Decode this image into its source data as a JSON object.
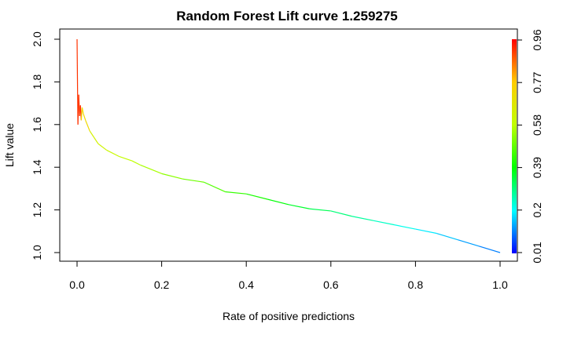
{
  "chart_data": {
    "type": "line",
    "title": "Random Forest Lift curve 1.259275",
    "xlabel": "Rate of positive predictions",
    "ylabel": "Lift value",
    "xlim": [
      0,
      1
    ],
    "ylim": [
      1.0,
      2.0
    ],
    "x_ticks": [
      "0.0",
      "0.2",
      "0.4",
      "0.6",
      "0.8",
      "1.0"
    ],
    "y_ticks": [
      "1.0",
      "1.2",
      "1.4",
      "1.6",
      "1.8",
      "2.0"
    ],
    "colorbar": {
      "range": [
        0.01,
        0.96
      ],
      "tick_labels": [
        "0.01",
        "0.2",
        "0.39",
        "0.58",
        "0.77",
        "0.96"
      ],
      "colormap": "rainbow (blue to red)"
    },
    "grid": false,
    "series": [
      {
        "x": [
          0.0,
          0.002,
          0.004,
          0.006,
          0.008,
          0.01,
          0.012,
          0.015,
          0.02,
          0.03,
          0.04,
          0.05,
          0.07,
          0.1,
          0.13,
          0.15,
          0.2,
          0.25,
          0.3,
          0.35,
          0.4,
          0.45,
          0.5,
          0.55,
          0.6,
          0.65,
          0.7,
          0.75,
          0.8,
          0.85,
          0.9,
          0.95,
          1.0
        ],
        "y": [
          2.0,
          1.6,
          1.74,
          1.64,
          1.69,
          1.62,
          1.68,
          1.65,
          1.62,
          1.57,
          1.54,
          1.51,
          1.48,
          1.45,
          1.43,
          1.41,
          1.37,
          1.345,
          1.33,
          1.285,
          1.275,
          1.25,
          1.225,
          1.205,
          1.195,
          1.17,
          1.15,
          1.13,
          1.11,
          1.09,
          1.06,
          1.03,
          1.0
        ]
      }
    ]
  }
}
